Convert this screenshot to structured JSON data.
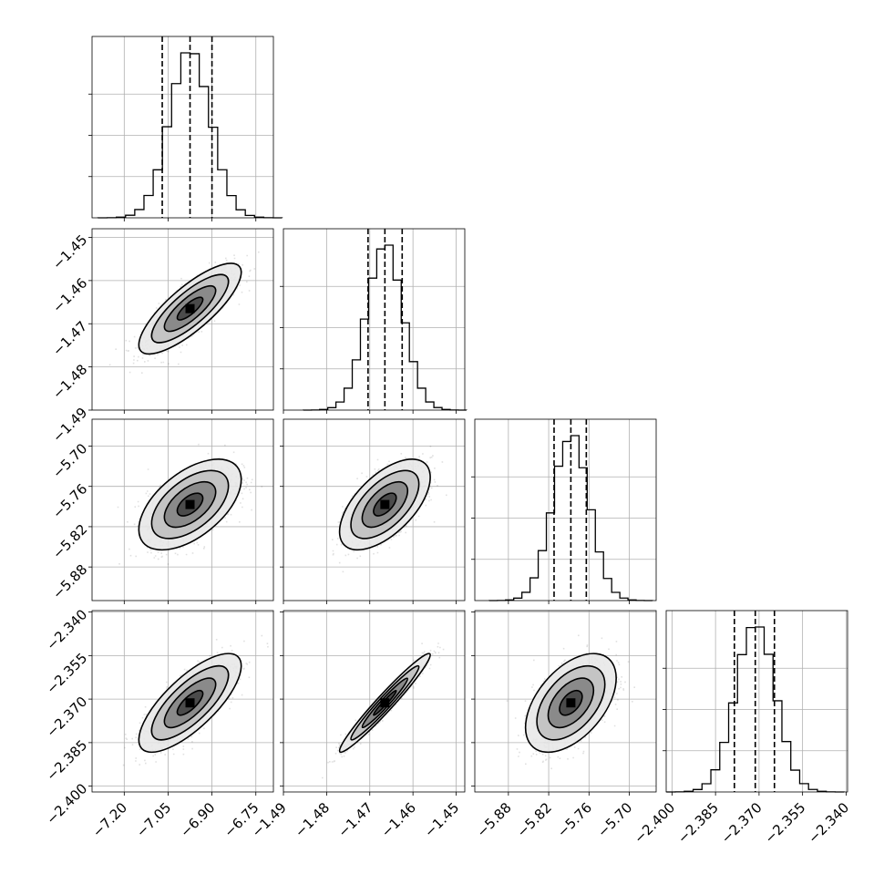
{
  "chart_data": {
    "type": "corner",
    "colors": {
      "ink": "#000000",
      "grid": "#b0b0b0",
      "fill_light": "#e6e6e6",
      "fill_mid": "#bdbdbd",
      "fill_dark": "#808080",
      "fill_core": "#404040"
    },
    "grid": true,
    "parameters": [
      {
        "range": [
          -7.31,
          -6.69
        ],
        "ticks": [
          -7.2,
          -7.05,
          -6.9,
          -6.75
        ],
        "tick_labels": [
          "−7.20",
          "−7.05",
          "−6.90",
          "−6.75"
        ],
        "mean": -6.975,
        "sd": 0.07,
        "quantiles": [
          -7.07,
          -6.975,
          -6.9
        ],
        "histogram_peak_relative": 1.0
      },
      {
        "range": [
          -1.49,
          -1.448
        ],
        "ticks": [
          -1.49,
          -1.48,
          -1.47,
          -1.46,
          -1.45
        ],
        "tick_labels": [
          "−1.49",
          "−1.48",
          "−1.47",
          "−1.46",
          "−1.45"
        ],
        "mean": -1.4665,
        "sd": 0.0042,
        "quantiles": [
          -1.4704,
          -1.4665,
          -1.4625
        ]
      },
      {
        "range": [
          -5.93,
          -5.66
        ],
        "ticks": [
          -5.88,
          -5.82,
          -5.76,
          -5.7
        ],
        "tick_labels": [
          "−5.88",
          "−5.82",
          "−5.76",
          "−5.70"
        ],
        "mean": -5.787,
        "sd": 0.027,
        "quantiles": [
          -5.812,
          -5.787,
          -5.764
        ]
      },
      {
        "range": [
          -2.402,
          -2.3395
        ],
        "ticks": [
          -2.4,
          -2.385,
          -2.37,
          -2.355,
          -2.34
        ],
        "tick_labels": [
          "−2.400",
          "−2.385",
          "−2.370",
          "−2.355",
          "−2.340"
        ],
        "mean": -2.3713,
        "sd": 0.0068,
        "quantiles": [
          -2.3785,
          -2.3713,
          -2.3647
        ]
      }
    ],
    "correlations": [
      {
        "i": 1,
        "j": 0,
        "rho": 0.8
      },
      {
        "i": 2,
        "j": 0,
        "rho": 0.55
      },
      {
        "i": 2,
        "j": 1,
        "rho": 0.6
      },
      {
        "i": 3,
        "j": 0,
        "rho": 0.75
      },
      {
        "i": 3,
        "j": 1,
        "rho": 0.97
      },
      {
        "i": 3,
        "j": 2,
        "rho": 0.5
      }
    ],
    "contour_levels_sigma": [
      0.5,
      1.0,
      1.5,
      2.0
    ],
    "histogram_bins": 20,
    "quantile_levels": [
      0.16,
      0.5,
      0.84
    ]
  }
}
